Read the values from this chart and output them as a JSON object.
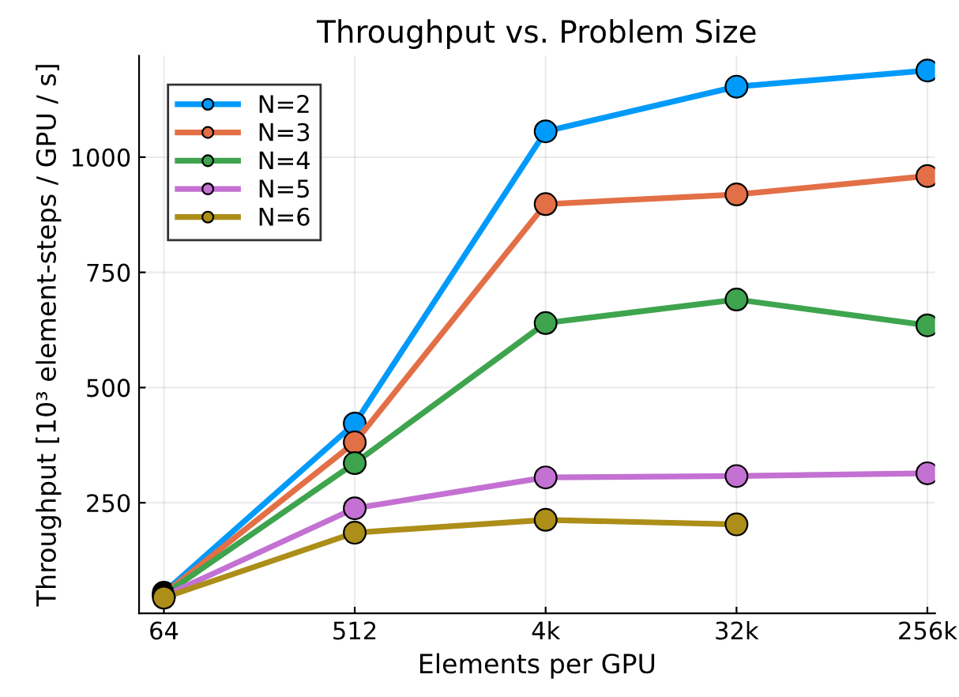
{
  "chart_data": {
    "type": "line",
    "title": "Throughput vs. Problem Size",
    "xlabel": "Elements per GPU",
    "ylabel": "Throughput [10³ element-steps / GPU / s]",
    "categories": [
      "64",
      "512",
      "4k",
      "32k",
      "256k"
    ],
    "series": [
      {
        "name": "N=2",
        "color": "#009afa",
        "values": [
          55,
          422,
          1056,
          1153,
          1188
        ]
      },
      {
        "name": "N=3",
        "color": "#e36f47",
        "values": [
          52,
          381,
          898,
          919,
          959
        ]
      },
      {
        "name": "N=4",
        "color": "#3ea44e",
        "values": [
          50,
          336,
          640,
          691,
          635
        ]
      },
      {
        "name": "N=5",
        "color": "#c371d2",
        "values": [
          47,
          238,
          305,
          308,
          314
        ]
      },
      {
        "name": "N=6",
        "color": "#ac8e18",
        "values": [
          44,
          185,
          213,
          203,
          null
        ]
      }
    ],
    "ylim": [
      10,
      1220
    ],
    "yticks": [
      250,
      500,
      750,
      1000
    ],
    "grid": true,
    "legend": "top left",
    "marker": "circle",
    "line_style": "solid"
  }
}
